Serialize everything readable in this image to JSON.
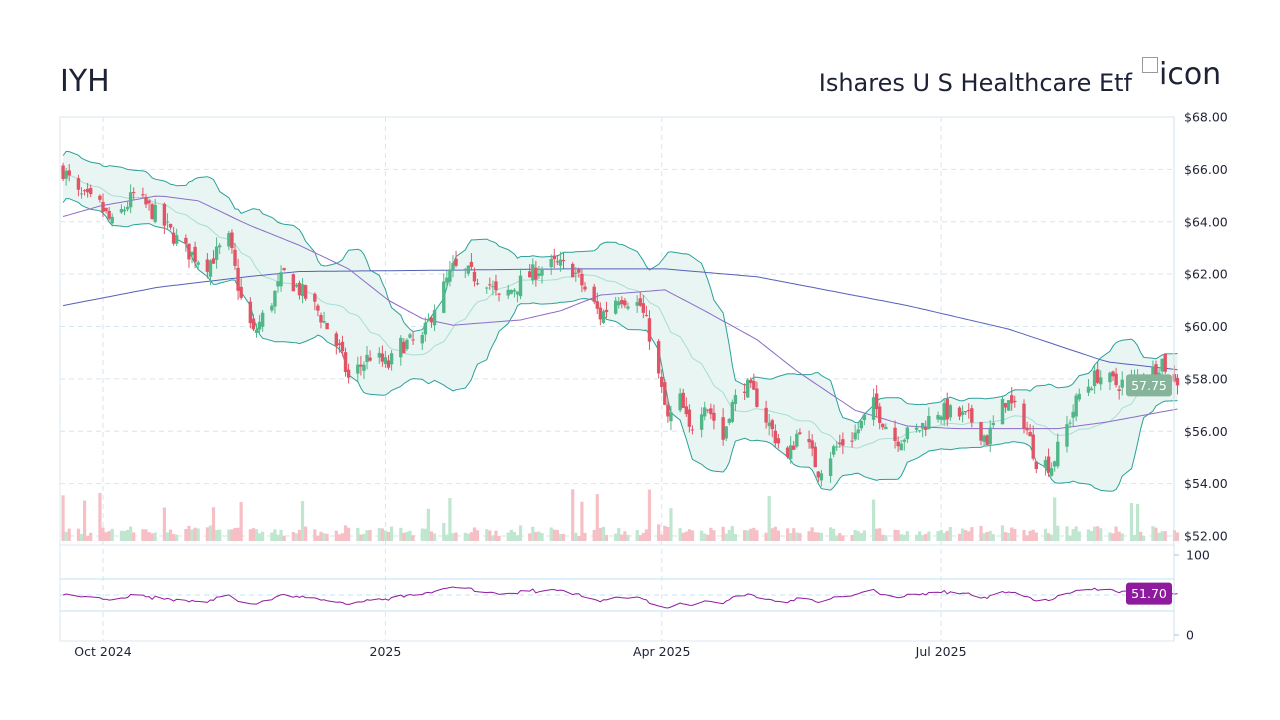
{
  "header": {
    "ticker": "IYH",
    "name": "Ishares U S Healthcare Etf",
    "logo_alt": "icon"
  },
  "chart_data": {
    "type": "candlestick",
    "title": "IYH",
    "subtitle": "Ishares U S Healthcare Etf",
    "x_ticks": [
      {
        "date": "2024-10-01",
        "label": "Oct 2024"
      },
      {
        "date": "2025-01-01",
        "label": "2025"
      },
      {
        "date": "2025-04-01",
        "label": "Apr 2025"
      },
      {
        "date": "2025-07-01",
        "label": "Jul 2025"
      }
    ],
    "price_axis": {
      "ylim": [
        52,
        68
      ],
      "ticks": [
        "$68.00",
        "$66.00",
        "$64.00",
        "$62.00",
        "$60.00",
        "$58.00",
        "$56.00",
        "$54.00",
        "$52.00"
      ],
      "tick_values": [
        68,
        66,
        64,
        62,
        60,
        58,
        56,
        54,
        52
      ]
    },
    "rsi_axis": {
      "ylim": [
        0,
        100
      ],
      "ticks": [
        "100",
        "0"
      ],
      "tick_values": [
        100,
        0
      ],
      "guides": [
        70,
        50,
        30
      ]
    },
    "grid": true,
    "close_keypoints": [
      [
        "2024-09-18",
        65.98
      ],
      [
        "2024-09-23",
        65.0
      ],
      [
        "2024-09-30",
        64.6
      ],
      [
        "2024-10-04",
        63.9
      ],
      [
        "2024-10-11",
        65.0
      ],
      [
        "2024-10-18",
        64.3
      ],
      [
        "2024-10-28",
        62.9
      ],
      [
        "2024-11-04",
        62.4
      ],
      [
        "2024-11-11",
        63.3
      ],
      [
        "2024-11-15",
        61.0
      ],
      [
        "2024-11-19",
        59.7
      ],
      [
        "2024-11-25",
        61.0
      ],
      [
        "2024-11-29",
        62.0
      ],
      [
        "2024-12-04",
        61.4
      ],
      [
        "2024-12-10",
        60.6
      ],
      [
        "2024-12-17",
        59.1
      ],
      [
        "2024-12-20",
        58.0
      ],
      [
        "2024-12-27",
        58.9
      ],
      [
        "2025-01-02",
        58.5
      ],
      [
        "2025-01-06",
        59.3
      ],
      [
        "2025-01-13",
        59.5
      ],
      [
        "2025-01-17",
        60.8
      ],
      [
        "2025-01-23",
        62.2
      ],
      [
        "2025-01-28",
        62.0
      ],
      [
        "2025-02-03",
        61.8
      ],
      [
        "2025-02-07",
        61.0
      ],
      [
        "2025-02-13",
        61.6
      ],
      [
        "2025-02-20",
        62.2
      ],
      [
        "2025-02-25",
        62.35
      ],
      [
        "2025-03-03",
        62.2
      ],
      [
        "2025-03-07",
        61.4
      ],
      [
        "2025-03-12",
        60.4
      ],
      [
        "2025-03-18",
        61.2
      ],
      [
        "2025-03-25",
        60.8
      ],
      [
        "2025-03-28",
        59.7
      ],
      [
        "2025-04-03",
        56.4
      ],
      [
        "2025-04-07",
        57.2
      ],
      [
        "2025-04-10",
        56.0
      ],
      [
        "2025-04-15",
        57.2
      ],
      [
        "2025-04-21",
        55.7
      ],
      [
        "2025-04-23",
        56.8
      ],
      [
        "2025-04-28",
        57.8
      ],
      [
        "2025-05-02",
        57.2
      ],
      [
        "2025-05-07",
        56.0
      ],
      [
        "2025-05-12",
        54.9
      ],
      [
        "2025-05-16",
        56.2
      ],
      [
        "2025-05-22",
        54.5
      ],
      [
        "2025-05-27",
        55.3
      ],
      [
        "2025-06-03",
        55.9
      ],
      [
        "2025-06-09",
        57.0
      ],
      [
        "2025-06-16",
        55.7
      ],
      [
        "2025-06-23",
        56.0
      ],
      [
        "2025-06-30",
        56.8
      ],
      [
        "2025-07-07",
        56.6
      ],
      [
        "2025-07-11",
        56.4
      ],
      [
        "2025-07-16",
        55.7
      ],
      [
        "2025-07-22",
        57.2
      ],
      [
        "2025-07-28",
        56.4
      ],
      [
        "2025-08-01",
        54.9
      ],
      [
        "2025-08-06",
        54.7
      ],
      [
        "2025-08-11",
        56.2
      ],
      [
        "2025-08-15",
        57.4
      ],
      [
        "2025-08-21",
        58.15
      ],
      [
        "2025-08-27",
        57.8
      ],
      [
        "2025-09-03",
        58.0
      ],
      [
        "2025-09-08",
        58.3
      ],
      [
        "2025-09-11",
        58.7
      ],
      [
        "2025-09-15",
        57.8
      ],
      [
        "2025-09-16",
        57.75
      ]
    ],
    "sma50_keypoints": [
      [
        "2024-09-18",
        64.2
      ],
      [
        "2024-09-30",
        64.6
      ],
      [
        "2024-10-19",
        65.0
      ],
      [
        "2024-11-01",
        64.8
      ],
      [
        "2024-11-17",
        63.9
      ],
      [
        "2024-12-04",
        63.1
      ],
      [
        "2024-12-20",
        62.2
      ],
      [
        "2025-01-02",
        61.0
      ],
      [
        "2025-01-13",
        60.3
      ],
      [
        "2025-01-23",
        60.05
      ],
      [
        "2025-02-14",
        60.25
      ],
      [
        "2025-02-27",
        60.6
      ],
      [
        "2025-03-12",
        61.2
      ],
      [
        "2025-04-02",
        61.4
      ],
      [
        "2025-04-15",
        60.6
      ],
      [
        "2025-05-02",
        59.5
      ],
      [
        "2025-05-15",
        58.3
      ],
      [
        "2025-06-03",
        56.8
      ],
      [
        "2025-06-20",
        56.2
      ],
      [
        "2025-07-06",
        56.1
      ],
      [
        "2025-08-08",
        56.1
      ],
      [
        "2025-08-24",
        56.35
      ],
      [
        "2025-09-16",
        56.85
      ]
    ],
    "sma200_keypoints": [
      [
        "2024-09-18",
        60.8
      ],
      [
        "2024-10-19",
        61.5
      ],
      [
        "2024-11-17",
        61.9
      ],
      [
        "2024-12-04",
        62.1
      ],
      [
        "2025-01-20",
        62.15
      ],
      [
        "2025-03-01",
        62.2
      ],
      [
        "2025-04-02",
        62.2
      ],
      [
        "2025-05-02",
        61.9
      ],
      [
        "2025-06-20",
        60.8
      ],
      [
        "2025-07-23",
        59.9
      ],
      [
        "2025-08-24",
        58.65
      ],
      [
        "2025-09-16",
        58.35
      ]
    ],
    "bollinger": {
      "period": 20,
      "stddev": 2
    },
    "rsi": {
      "period": 14
    },
    "last_price": "57.75",
    "last_rsi": "51.70",
    "colors": {
      "up": "#52b788",
      "down": "#e05565",
      "band": "#2aa198",
      "band_fill": "#e8f5f3",
      "band_mid": "#a8ddd3",
      "sma50": "#8c6cc8",
      "sma200": "#5560b8",
      "rsi": "#8e1b9e",
      "last_price_bg": "#86b49a",
      "grid": "#d6e6ee",
      "rsi_guide": "#bfe3f5"
    }
  }
}
